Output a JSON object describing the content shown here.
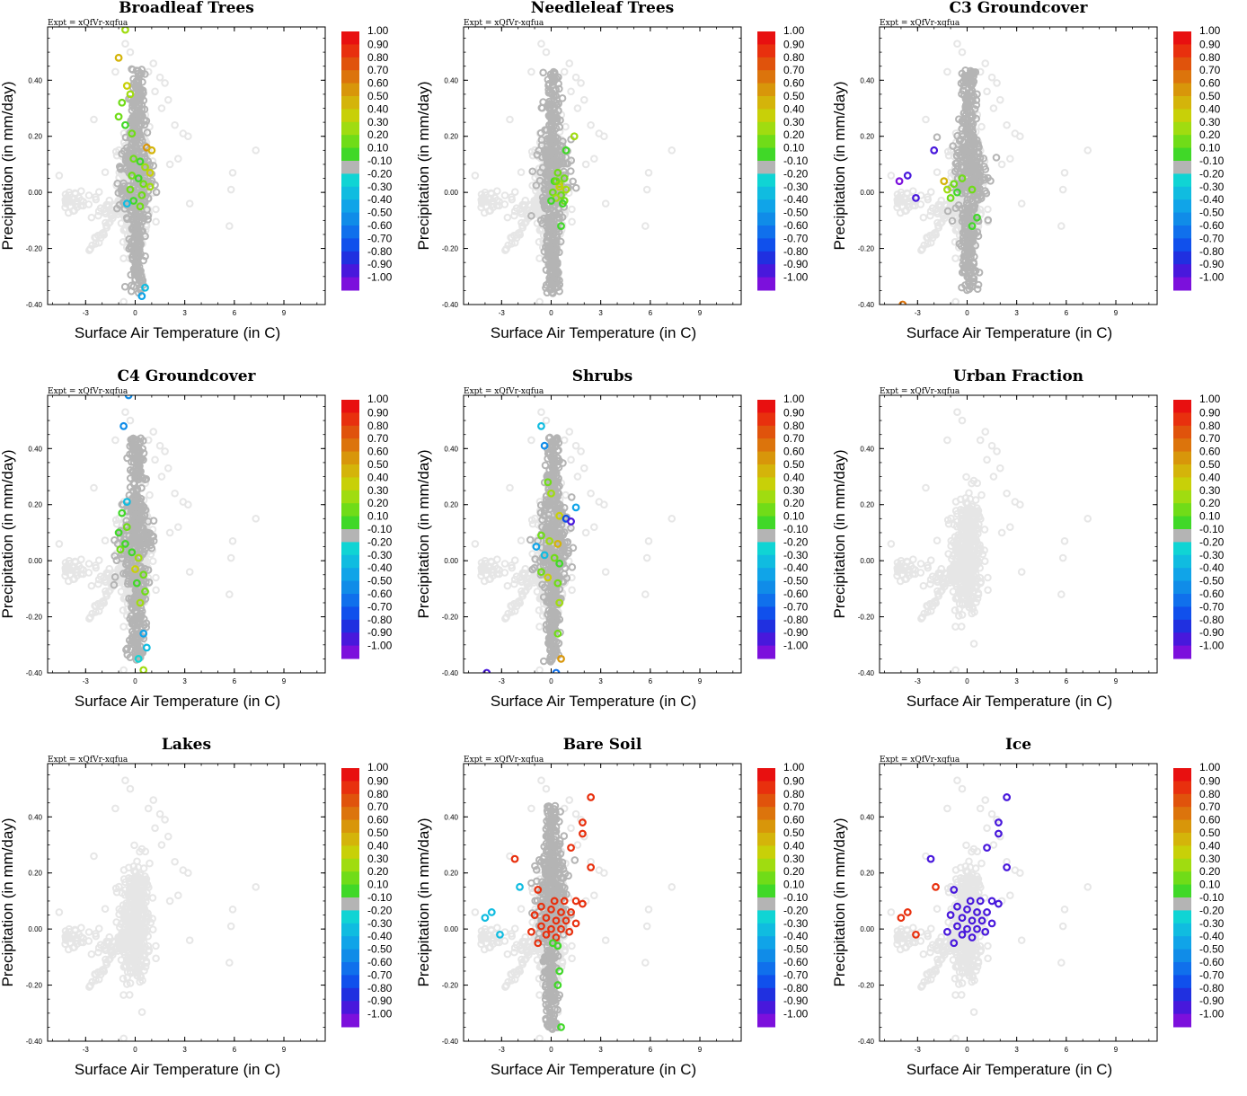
{
  "figure": {
    "expt_label": "Expt = xQfVr-xqfua",
    "x_axis_label": "Surface Air Temperature (in C)",
    "y_axis_label": "Precipitation (in mm/day)",
    "x_ticks": [
      "-3",
      "0",
      "3",
      "6",
      "9"
    ],
    "y_ticks": [
      "0.40",
      "0.20",
      "0.00",
      "-0.20",
      "-0.40"
    ],
    "colorbar_labels": [
      "1.00",
      "0.90",
      "0.80",
      "0.70",
      "0.60",
      "0.50",
      "0.40",
      "0.30",
      "0.20",
      "0.10",
      "-0.10",
      "-0.20",
      "-0.30",
      "-0.40",
      "-0.50",
      "-0.60",
      "-0.70",
      "-0.80",
      "-0.90",
      "-1.00"
    ],
    "colorbar_colors": [
      "#e81010",
      "#e8300e",
      "#e0530c",
      "#dc740c",
      "#d8960a",
      "#d4b40a",
      "#c8d008",
      "#a0dc10",
      "#70dc18",
      "#40d828",
      "#b4b4b4",
      "#10d4d4",
      "#10bce0",
      "#10a4e8",
      "#108ce8",
      "#1070ec",
      "#1050ec",
      "#2030e0",
      "#4818dc",
      "#7c10dc"
    ],
    "colors": {
      "background_point": "#e6e6e6",
      "neutral_point": "#b4b4b4"
    }
  },
  "chart_data": [
    {
      "type": "scatter",
      "title": "Broadleaf Trees",
      "xlabel": "Surface Air Temperature (in C)",
      "ylabel": "Precipitation (in mm/day)",
      "xlim": [
        -5.3,
        11.5
      ],
      "ylim": [
        -0.4,
        0.59
      ],
      "background_cloud": true,
      "neutral_band": true,
      "neutral_center": [
        0.1,
        0.05
      ],
      "colored_points": [
        [
          -0.6,
          0.58,
          0.3
        ],
        [
          -1.0,
          0.48,
          0.5
        ],
        [
          -0.5,
          0.38,
          0.4
        ],
        [
          -0.3,
          0.35,
          0.3
        ],
        [
          -0.8,
          0.32,
          0.2
        ],
        [
          -1.0,
          0.27,
          0.2
        ],
        [
          -0.6,
          0.24,
          0.1
        ],
        [
          -0.2,
          0.21,
          0.2
        ],
        [
          0.7,
          0.16,
          0.6
        ],
        [
          1.0,
          0.15,
          0.5
        ],
        [
          -0.1,
          0.12,
          0.2
        ],
        [
          0.3,
          0.11,
          0.1
        ],
        [
          0.6,
          0.09,
          0.3
        ],
        [
          0.9,
          0.07,
          0.4
        ],
        [
          -0.2,
          0.06,
          0.2
        ],
        [
          0.2,
          0.05,
          0.1
        ],
        [
          0.5,
          0.03,
          0.2
        ],
        [
          0.9,
          0.02,
          0.3
        ],
        [
          -0.3,
          0.01,
          0.2
        ],
        [
          0.4,
          -0.01,
          0.2
        ],
        [
          -0.1,
          -0.03,
          0.1
        ],
        [
          0.3,
          -0.05,
          0.2
        ],
        [
          -0.5,
          -0.04,
          -0.3
        ],
        [
          0.6,
          -0.34,
          -0.3
        ],
        [
          0.4,
          -0.37,
          -0.4
        ]
      ]
    },
    {
      "type": "scatter",
      "title": "Needleleaf Trees",
      "xlabel": "Surface Air Temperature (in C)",
      "ylabel": "Precipitation (in mm/day)",
      "xlim": [
        -5.3,
        11.5
      ],
      "ylim": [
        -0.4,
        0.59
      ],
      "background_cloud": true,
      "neutral_band": true,
      "neutral_center": [
        0.1,
        0.05
      ],
      "colored_points": [
        [
          1.4,
          0.2,
          0.3
        ],
        [
          0.9,
          0.15,
          0.1
        ],
        [
          0.4,
          0.07,
          0.2
        ],
        [
          0.8,
          0.05,
          0.2
        ],
        [
          0.2,
          0.04,
          0.1
        ],
        [
          0.5,
          0.03,
          0.3
        ],
        [
          0.9,
          0.01,
          0.3
        ],
        [
          0.1,
          0.0,
          0.2
        ],
        [
          0.6,
          -0.01,
          0.2
        ],
        [
          0.3,
          -0.02,
          0.3
        ],
        [
          0.8,
          -0.03,
          0.2
        ],
        [
          0.0,
          -0.03,
          0.1
        ],
        [
          0.5,
          0.02,
          0.4
        ],
        [
          0.3,
          0.04,
          0.2
        ],
        [
          0.7,
          -0.04,
          0.1
        ],
        [
          0.6,
          -0.12,
          0.1
        ]
      ]
    },
    {
      "type": "scatter",
      "title": "C3 Groundcover",
      "xlabel": "Surface Air Temperature (in C)",
      "ylabel": "Precipitation (in mm/day)",
      "xlim": [
        -5.3,
        11.5
      ],
      "ylim": [
        -0.4,
        0.59
      ],
      "background_cloud": true,
      "neutral_band": true,
      "neutral_center": [
        0.1,
        0.05
      ],
      "colored_points": [
        [
          -2.0,
          0.15,
          -0.9
        ],
        [
          -3.6,
          0.06,
          -0.9
        ],
        [
          -4.1,
          0.04,
          -1.0
        ],
        [
          -3.1,
          -0.02,
          -0.9
        ],
        [
          -1.4,
          0.04,
          0.5
        ],
        [
          -1.2,
          0.01,
          0.3
        ],
        [
          -0.8,
          0.03,
          0.2
        ],
        [
          -0.6,
          0.0,
          0.1
        ],
        [
          -1.0,
          -0.02,
          0.2
        ],
        [
          -0.3,
          0.05,
          0.2
        ],
        [
          0.3,
          0.01,
          0.2
        ],
        [
          0.6,
          -0.09,
          0.1
        ],
        [
          0.3,
          -0.12,
          0.1
        ],
        [
          -3.9,
          -0.4,
          0.7
        ]
      ]
    },
    {
      "type": "scatter",
      "title": "C4 Groundcover",
      "xlabel": "Surface Air Temperature (in C)",
      "ylabel": "Precipitation (in mm/day)",
      "xlim": [
        -5.3,
        11.5
      ],
      "ylim": [
        -0.4,
        0.59
      ],
      "background_cloud": true,
      "neutral_band": true,
      "neutral_center": [
        0.1,
        0.05
      ],
      "colored_points": [
        [
          -0.4,
          0.59,
          -0.5
        ],
        [
          -0.7,
          0.48,
          -0.5
        ],
        [
          -0.5,
          0.21,
          -0.3
        ],
        [
          -0.8,
          0.17,
          0.1
        ],
        [
          -0.5,
          0.12,
          0.2
        ],
        [
          -1.0,
          0.1,
          0.1
        ],
        [
          -0.6,
          0.06,
          0.1
        ],
        [
          -0.9,
          0.04,
          0.2
        ],
        [
          -0.2,
          0.03,
          0.1
        ],
        [
          0.2,
          0.01,
          0.3
        ],
        [
          0.0,
          -0.03,
          0.4
        ],
        [
          0.5,
          -0.05,
          0.2
        ],
        [
          0.1,
          -0.08,
          0.1
        ],
        [
          0.6,
          -0.11,
          0.2
        ],
        [
          0.3,
          -0.15,
          0.3
        ],
        [
          0.5,
          -0.26,
          -0.4
        ],
        [
          0.7,
          -0.31,
          -0.3
        ],
        [
          0.2,
          -0.35,
          -0.2
        ],
        [
          0.5,
          -0.39,
          0.3
        ]
      ]
    },
    {
      "type": "scatter",
      "title": "Shrubs",
      "xlabel": "Surface Air Temperature (in C)",
      "ylabel": "Precipitation (in mm/day)",
      "xlim": [
        -5.3,
        11.5
      ],
      "ylim": [
        -0.4,
        0.59
      ],
      "background_cloud": true,
      "neutral_band": true,
      "neutral_center": [
        0.1,
        0.05
      ],
      "colored_points": [
        [
          -0.6,
          0.48,
          -0.3
        ],
        [
          -0.4,
          0.41,
          -0.5
        ],
        [
          -0.2,
          0.28,
          0.2
        ],
        [
          0.0,
          0.24,
          0.3
        ],
        [
          0.5,
          0.16,
          0.4
        ],
        [
          0.9,
          0.15,
          -0.7
        ],
        [
          1.2,
          0.14,
          -0.9
        ],
        [
          1.5,
          0.19,
          -0.4
        ],
        [
          -0.6,
          0.09,
          0.2
        ],
        [
          -0.1,
          0.07,
          0.3
        ],
        [
          0.4,
          0.06,
          0.5
        ],
        [
          -0.9,
          0.05,
          -0.4
        ],
        [
          -0.4,
          0.02,
          -0.3
        ],
        [
          0.2,
          0.01,
          0.2
        ],
        [
          0.5,
          -0.01,
          0.1
        ],
        [
          -0.6,
          -0.04,
          0.2
        ],
        [
          -0.2,
          -0.06,
          0.4
        ],
        [
          0.4,
          -0.08,
          0.2
        ],
        [
          0.5,
          -0.15,
          0.3
        ],
        [
          0.4,
          -0.26,
          0.2
        ],
        [
          0.6,
          -0.35,
          0.6
        ],
        [
          0.3,
          -0.4,
          -0.6
        ],
        [
          -3.9,
          -0.4,
          -0.9
        ]
      ]
    },
    {
      "type": "scatter",
      "title": "Urban Fraction",
      "xlabel": "Surface Air Temperature (in C)",
      "ylabel": "Precipitation (in mm/day)",
      "xlim": [
        -5.3,
        11.5
      ],
      "ylim": [
        -0.4,
        0.59
      ],
      "background_cloud": true,
      "neutral_band": false,
      "colored_points": []
    },
    {
      "type": "scatter",
      "title": "Lakes",
      "xlabel": "Surface Air Temperature (in C)",
      "ylabel": "Precipitation (in mm/day)",
      "xlim": [
        -5.3,
        11.5
      ],
      "ylim": [
        -0.4,
        0.59
      ],
      "background_cloud": true,
      "neutral_band": false,
      "colored_points": []
    },
    {
      "type": "scatter",
      "title": "Bare Soil",
      "xlabel": "Surface Air Temperature (in C)",
      "ylabel": "Precipitation (in mm/day)",
      "xlim": [
        -5.3,
        11.5
      ],
      "ylim": [
        -0.4,
        0.59
      ],
      "background_cloud": true,
      "neutral_band": true,
      "neutral_center": [
        0.0,
        0.12
      ],
      "colored_points": [
        [
          2.4,
          0.47,
          0.9
        ],
        [
          1.9,
          0.38,
          0.9
        ],
        [
          1.9,
          0.34,
          0.9
        ],
        [
          1.2,
          0.29,
          0.9
        ],
        [
          2.4,
          0.22,
          0.9
        ],
        [
          -2.2,
          0.25,
          0.9
        ],
        [
          -1.9,
          0.15,
          -0.3
        ],
        [
          -3.6,
          0.06,
          -0.3
        ],
        [
          -4.0,
          0.04,
          -0.3
        ],
        [
          -3.1,
          -0.02,
          -0.3
        ],
        [
          -0.8,
          0.14,
          0.9
        ],
        [
          0.2,
          0.1,
          0.9
        ],
        [
          0.8,
          0.1,
          0.9
        ],
        [
          1.5,
          0.1,
          0.9
        ],
        [
          1.9,
          0.09,
          0.9
        ],
        [
          -0.6,
          0.08,
          0.9
        ],
        [
          0.0,
          0.07,
          0.9
        ],
        [
          0.6,
          0.06,
          0.9
        ],
        [
          1.2,
          0.06,
          0.9
        ],
        [
          -1.0,
          0.05,
          0.9
        ],
        [
          -0.3,
          0.04,
          0.9
        ],
        [
          0.3,
          0.03,
          0.9
        ],
        [
          0.9,
          0.03,
          0.9
        ],
        [
          1.5,
          0.02,
          0.9
        ],
        [
          -0.6,
          0.01,
          0.9
        ],
        [
          0.0,
          0.0,
          0.9
        ],
        [
          0.6,
          0.0,
          0.9
        ],
        [
          1.1,
          -0.01,
          0.9
        ],
        [
          -1.2,
          -0.01,
          0.9
        ],
        [
          -0.3,
          -0.02,
          0.9
        ],
        [
          0.3,
          -0.03,
          0.9
        ],
        [
          -0.8,
          -0.05,
          0.9
        ],
        [
          0.1,
          -0.05,
          0.1
        ],
        [
          0.4,
          -0.06,
          0.1
        ],
        [
          0.5,
          -0.15,
          0.1
        ],
        [
          0.4,
          -0.2,
          0.1
        ],
        [
          0.6,
          -0.35,
          0.1
        ]
      ]
    },
    {
      "type": "scatter",
      "title": "Ice",
      "xlabel": "Surface Air Temperature (in C)",
      "ylabel": "Precipitation (in mm/day)",
      "xlim": [
        -5.3,
        11.5
      ],
      "ylim": [
        -0.4,
        0.59
      ],
      "background_cloud": true,
      "neutral_band": false,
      "colored_points": [
        [
          2.4,
          0.47,
          -0.9
        ],
        [
          1.9,
          0.38,
          -0.9
        ],
        [
          1.9,
          0.34,
          -0.9
        ],
        [
          1.2,
          0.29,
          -0.9
        ],
        [
          2.4,
          0.22,
          -0.9
        ],
        [
          -2.2,
          0.25,
          -0.9
        ],
        [
          -1.9,
          0.15,
          0.9
        ],
        [
          -3.6,
          0.06,
          0.9
        ],
        [
          -4.0,
          0.04,
          0.9
        ],
        [
          -3.1,
          -0.02,
          0.9
        ],
        [
          -0.8,
          0.14,
          -0.9
        ],
        [
          0.2,
          0.1,
          -0.9
        ],
        [
          0.8,
          0.1,
          -0.9
        ],
        [
          1.5,
          0.1,
          -0.9
        ],
        [
          1.9,
          0.09,
          -0.9
        ],
        [
          -0.6,
          0.08,
          -0.9
        ],
        [
          0.0,
          0.07,
          -0.9
        ],
        [
          0.6,
          0.06,
          -0.9
        ],
        [
          1.2,
          0.06,
          -0.9
        ],
        [
          -1.0,
          0.05,
          -0.9
        ],
        [
          -0.3,
          0.04,
          -0.9
        ],
        [
          0.3,
          0.03,
          -0.9
        ],
        [
          0.9,
          0.03,
          -0.9
        ],
        [
          1.5,
          0.02,
          -0.9
        ],
        [
          -0.6,
          0.01,
          -0.9
        ],
        [
          0.0,
          0.0,
          -0.9
        ],
        [
          0.6,
          0.0,
          -0.9
        ],
        [
          1.1,
          -0.01,
          -0.9
        ],
        [
          -1.2,
          -0.01,
          -0.9
        ],
        [
          -0.3,
          -0.02,
          -0.9
        ],
        [
          0.3,
          -0.03,
          -0.9
        ],
        [
          -0.8,
          -0.05,
          -0.9
        ]
      ]
    }
  ]
}
